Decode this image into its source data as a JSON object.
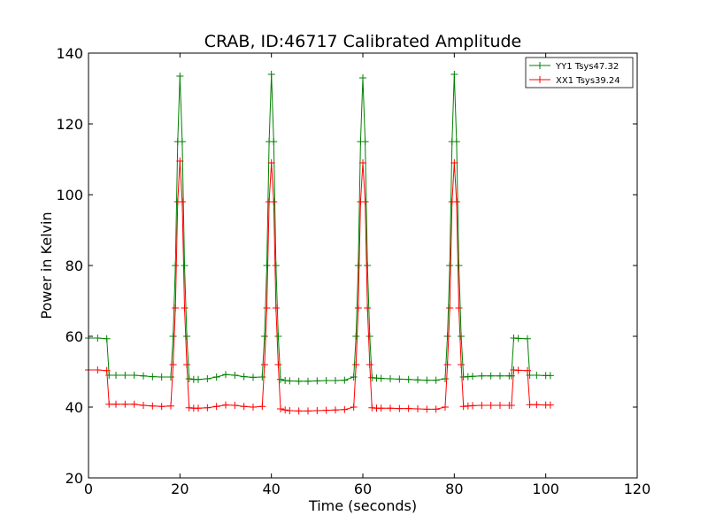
{
  "chart_data": {
    "type": "line",
    "title": "CRAB, ID:46717 Calibrated Amplitude",
    "xlabel": "Time (seconds)",
    "ylabel": "Power in Kelvin",
    "xlim": [
      0,
      120
    ],
    "ylim": [
      20,
      140
    ],
    "xticks": [
      "0",
      "20",
      "40",
      "60",
      "80",
      "100",
      "120"
    ],
    "yticks": [
      "20",
      "40",
      "60",
      "80",
      "100",
      "120",
      "140"
    ],
    "grid": false,
    "legend_position": "top-right",
    "marker": "+",
    "series": [
      {
        "name": "YY1 Tsys47.32",
        "color": "#008000",
        "x": [
          0,
          2,
          4,
          4.5,
          6,
          8,
          10,
          12,
          14,
          16,
          18,
          18.5,
          19,
          19.5,
          20,
          20.5,
          21,
          21.5,
          22,
          23,
          24,
          26,
          28,
          30,
          32,
          34,
          36,
          38,
          38.5,
          39,
          39.5,
          40,
          40.5,
          41,
          41.5,
          42,
          43,
          44,
          46,
          48,
          50,
          52,
          54,
          56,
          58,
          58.5,
          59,
          59.5,
          60,
          60.5,
          61,
          61.5,
          62,
          63,
          64,
          66,
          68,
          70,
          72,
          74,
          76,
          78,
          78.5,
          79,
          79.5,
          80,
          80.5,
          81,
          81.5,
          82,
          83,
          84,
          86,
          88,
          90,
          92,
          92.5,
          93,
          94,
          96,
          96.5,
          98,
          100,
          101
        ],
        "y": [
          59.5,
          59.5,
          59.3,
          49.0,
          49.0,
          49.0,
          49.0,
          48.8,
          48.6,
          48.5,
          48.5,
          60.0,
          80.0,
          115.0,
          133.5,
          115.0,
          80.0,
          60.0,
          48.0,
          47.8,
          47.8,
          48.0,
          48.5,
          49.2,
          49.0,
          48.6,
          48.4,
          48.5,
          60.0,
          80.0,
          115.0,
          134.0,
          115.0,
          80.0,
          60.0,
          47.8,
          47.5,
          47.4,
          47.3,
          47.3,
          47.4,
          47.5,
          47.5,
          47.6,
          48.5,
          60.0,
          80.0,
          115.0,
          133.0,
          115.0,
          80.0,
          60.0,
          48.3,
          48.2,
          48.1,
          48.0,
          47.9,
          47.8,
          47.7,
          47.6,
          47.6,
          48.0,
          60.0,
          80.0,
          115.0,
          134.0,
          115.0,
          80.0,
          60.0,
          48.5,
          48.6,
          48.7,
          48.8,
          48.8,
          48.8,
          48.8,
          48.8,
          59.5,
          59.4,
          59.3,
          49.0,
          49.0,
          48.9,
          48.9
        ]
      },
      {
        "name": "XX1 Tsys39.24",
        "color": "#ff0000",
        "x": [
          0,
          2,
          4,
          4.5,
          6,
          8,
          10,
          12,
          14,
          16,
          18,
          18.5,
          19,
          19.5,
          20,
          20.5,
          21,
          21.5,
          22,
          23,
          24,
          26,
          28,
          30,
          32,
          34,
          36,
          38,
          38.5,
          39,
          39.5,
          40,
          40.5,
          41,
          41.5,
          42,
          43,
          44,
          46,
          48,
          50,
          52,
          54,
          56,
          58,
          58.5,
          59,
          59.5,
          60,
          60.5,
          61,
          61.5,
          62,
          63,
          64,
          66,
          68,
          70,
          72,
          74,
          76,
          78,
          78.5,
          79,
          79.5,
          80,
          80.5,
          81,
          81.5,
          82,
          83,
          84,
          86,
          88,
          90,
          92,
          92.5,
          93,
          94,
          96,
          96.5,
          98,
          100,
          101
        ],
        "y": [
          50.5,
          50.5,
          50.3,
          40.8,
          40.8,
          40.8,
          40.8,
          40.5,
          40.3,
          40.2,
          40.3,
          52.0,
          68.0,
          98.0,
          109.5,
          98.0,
          68.0,
          52.0,
          39.8,
          39.7,
          39.7,
          39.8,
          40.2,
          40.6,
          40.5,
          40.2,
          40.0,
          40.2,
          52.0,
          68.0,
          98.0,
          109.0,
          98.0,
          68.0,
          52.0,
          39.5,
          39.2,
          39.0,
          38.9,
          38.9,
          39.0,
          39.1,
          39.2,
          39.3,
          40.0,
          52.0,
          68.0,
          98.0,
          109.0,
          98.0,
          68.0,
          52.0,
          39.8,
          39.7,
          39.7,
          39.7,
          39.6,
          39.6,
          39.5,
          39.4,
          39.4,
          40.0,
          52.0,
          68.0,
          98.0,
          109.0,
          98.0,
          68.0,
          52.0,
          40.2,
          40.3,
          40.4,
          40.5,
          40.5,
          40.5,
          40.5,
          40.5,
          50.5,
          50.4,
          50.3,
          40.7,
          40.7,
          40.6,
          40.6
        ]
      }
    ]
  }
}
